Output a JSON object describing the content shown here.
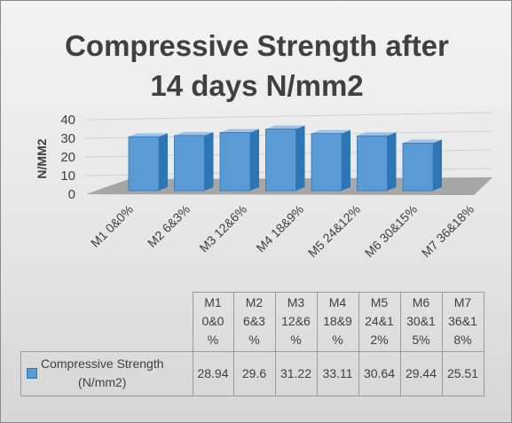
{
  "chart_data": {
    "type": "bar",
    "title_lines": [
      "Compressive Strength after",
      "14 days N/mm2"
    ],
    "ylabel": "N/MM2",
    "xlabel": "",
    "ylim": [
      0,
      40
    ],
    "yticks": [
      "0",
      "10",
      "20",
      "30",
      "40"
    ],
    "categories": [
      "M1 0&0%",
      "M2 6&3%",
      "M3 12&6%",
      "M4 18&9%",
      "M5 24&12%",
      "M6 30&15%",
      "M7 36&18%"
    ],
    "series": [
      {
        "name": "Compressive Strength (N/mm2)",
        "values": [
          28.94,
          29.6,
          31.22,
          33.11,
          30.64,
          29.44,
          25.51
        ]
      }
    ],
    "grid": true,
    "legend": "data-table"
  },
  "table": {
    "header_lines": [
      [
        "M1",
        "0&0",
        "%"
      ],
      [
        "M2",
        "6&3",
        "%"
      ],
      [
        "M3",
        "12&6",
        "%"
      ],
      [
        "M4",
        "18&9",
        "%"
      ],
      [
        "M5",
        "24&1",
        "2%"
      ],
      [
        "M6",
        "30&1",
        "5%"
      ],
      [
        "M7",
        "36&1",
        "8%"
      ]
    ],
    "series_label_lines": [
      "Compressive Strength",
      "(N/mm2)"
    ],
    "values": [
      "28.94",
      "29.6",
      "31.22",
      "33.11",
      "30.64",
      "29.44",
      "25.51"
    ]
  },
  "colors": {
    "bar_front": "#5b9bd5",
    "bar_side": "#2e75b6",
    "bar_top": "#9dc3e6",
    "floor": "#a6a6a6"
  }
}
